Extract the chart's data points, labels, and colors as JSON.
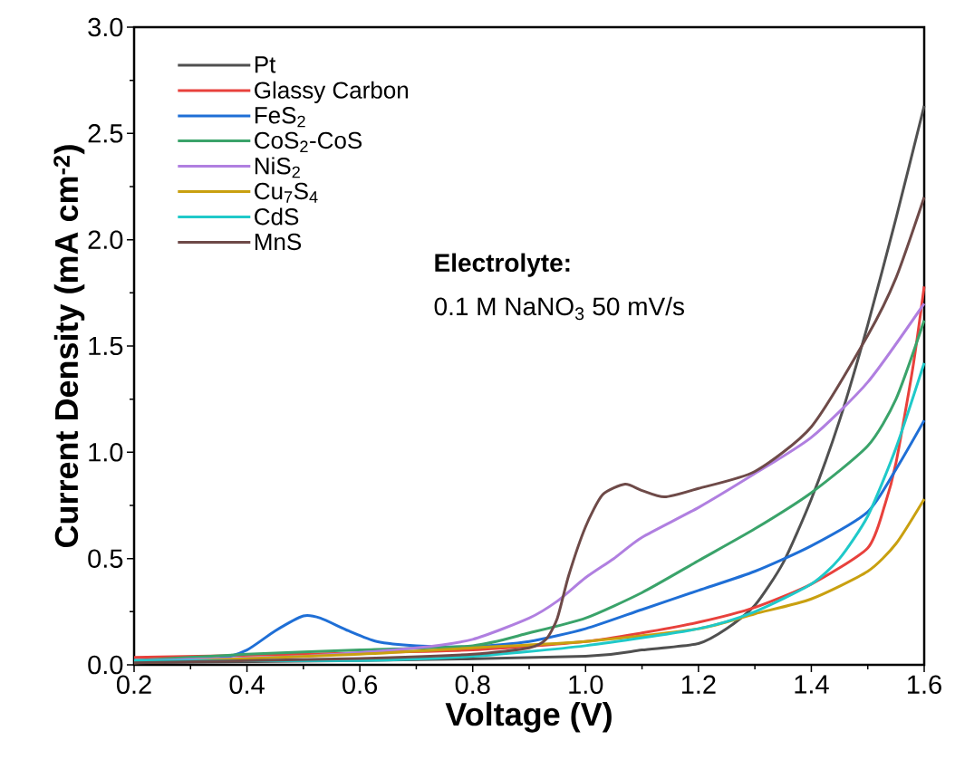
{
  "chart_data": {
    "type": "line",
    "xlabel": "Voltage (V)",
    "ylabel": "Current Density (mA cm$^{-2}$)",
    "xlim": [
      0.2,
      1.6
    ],
    "ylim": [
      0,
      3.0
    ],
    "xticks": [
      0.2,
      0.4,
      0.6,
      0.8,
      {
        "value": 1,
        "label": "1.0"
      },
      1.2,
      1.4,
      1.6
    ],
    "yticks": [
      {
        "value": 0,
        "label": "0.0"
      },
      0.5,
      {
        "value": 1,
        "label": "1.0"
      },
      1.5,
      {
        "value": 2,
        "label": "2.0"
      },
      2.5,
      {
        "value": 3,
        "label": "3.0"
      }
    ],
    "legend": "top left",
    "annotations": [
      "Electrolyte:",
      "0.1 M NaNO$_{3}$ 50 mV/s"
    ],
    "series": [
      {
        "name": "Pt",
        "color": "#505050",
        "x": [
          0.2,
          0.6,
          1.0,
          1.1,
          1.2,
          1.25,
          1.3,
          1.35,
          1.4,
          1.45,
          1.5,
          1.55,
          1.6
        ],
        "values": [
          0.01,
          0.02,
          0.04,
          0.07,
          0.1,
          0.17,
          0.28,
          0.48,
          0.78,
          1.15,
          1.6,
          2.1,
          2.63
        ]
      },
      {
        "name": "Glassy Carbon",
        "color": "#e8413c",
        "x": [
          0.2,
          0.5,
          0.8,
          1.0,
          1.1,
          1.2,
          1.3,
          1.4,
          1.5,
          1.53,
          1.55,
          1.58,
          1.6
        ],
        "values": [
          0.035,
          0.05,
          0.07,
          0.11,
          0.15,
          0.2,
          0.27,
          0.38,
          0.55,
          0.75,
          0.95,
          1.4,
          1.78
        ]
      },
      {
        "name": "FeS$_{2}$",
        "color": "#1f6fd6",
        "x": [
          0.2,
          0.35,
          0.4,
          0.45,
          0.5,
          0.53,
          0.58,
          0.63,
          0.7,
          0.8,
          0.9,
          1.0,
          1.1,
          1.2,
          1.3,
          1.4,
          1.5,
          1.55,
          1.6
        ],
        "values": [
          0.02,
          0.03,
          0.07,
          0.16,
          0.23,
          0.22,
          0.16,
          0.11,
          0.09,
          0.085,
          0.11,
          0.17,
          0.26,
          0.35,
          0.44,
          0.56,
          0.72,
          0.92,
          1.15
        ]
      },
      {
        "name": "CoS$_{2}$-CoS",
        "color": "#3aa36a",
        "x": [
          0.2,
          0.4,
          0.6,
          0.8,
          0.9,
          1.0,
          1.1,
          1.2,
          1.3,
          1.4,
          1.5,
          1.55,
          1.6
        ],
        "values": [
          0.02,
          0.05,
          0.07,
          0.09,
          0.15,
          0.22,
          0.34,
          0.49,
          0.64,
          0.81,
          1.03,
          1.25,
          1.62
        ]
      },
      {
        "name": "NiS$_{2}$",
        "color": "#b07fe0",
        "x": [
          0.2,
          0.5,
          0.7,
          0.8,
          0.9,
          0.95,
          1.0,
          1.05,
          1.1,
          1.2,
          1.3,
          1.4,
          1.5,
          1.6
        ],
        "values": [
          0.02,
          0.04,
          0.08,
          0.12,
          0.22,
          0.3,
          0.41,
          0.5,
          0.6,
          0.74,
          0.9,
          1.07,
          1.33,
          1.7
        ]
      },
      {
        "name": "Cu$_{7}$S$_{4}$",
        "color": "#c9a010",
        "x": [
          0.2,
          0.6,
          0.8,
          1.0,
          1.2,
          1.3,
          1.4,
          1.5,
          1.55,
          1.6
        ],
        "values": [
          0.01,
          0.05,
          0.08,
          0.11,
          0.17,
          0.24,
          0.31,
          0.44,
          0.57,
          0.78
        ]
      },
      {
        "name": "CdS",
        "color": "#1fc9c9",
        "x": [
          0.2,
          0.6,
          0.8,
          1.0,
          1.2,
          1.3,
          1.4,
          1.45,
          1.5,
          1.55,
          1.6
        ],
        "values": [
          0.02,
          0.02,
          0.04,
          0.09,
          0.17,
          0.25,
          0.38,
          0.5,
          0.7,
          1.02,
          1.42
        ]
      },
      {
        "name": "MnS",
        "color": "#6e4a48",
        "x": [
          0.2,
          0.6,
          0.8,
          0.9,
          0.93,
          0.95,
          0.97,
          1.0,
          1.03,
          1.07,
          1.1,
          1.14,
          1.2,
          1.3,
          1.4,
          1.5,
          1.55,
          1.6
        ],
        "values": [
          0.01,
          0.03,
          0.05,
          0.08,
          0.12,
          0.22,
          0.42,
          0.65,
          0.8,
          0.85,
          0.82,
          0.79,
          0.83,
          0.91,
          1.12,
          1.55,
          1.82,
          2.2
        ]
      }
    ]
  }
}
